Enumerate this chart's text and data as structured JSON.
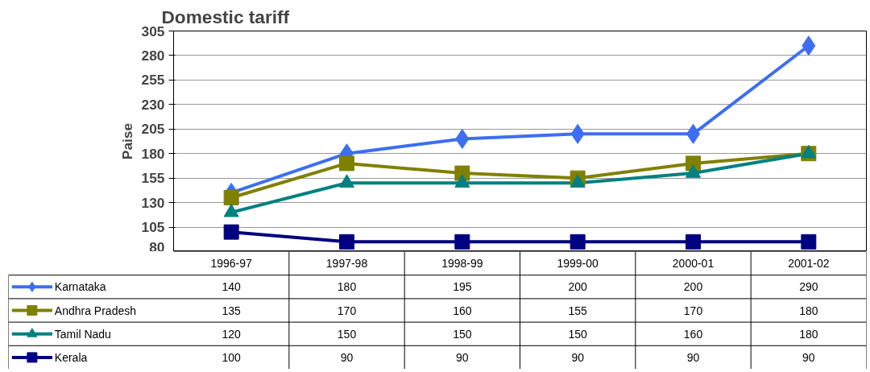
{
  "chart_data": {
    "type": "line",
    "title": "Domestic tariff",
    "ylabel": "Paise",
    "categories": [
      "1996-97",
      "1997-98",
      "1998-99",
      "1999-00",
      "2000-01",
      "2001-02"
    ],
    "series": [
      {
        "name": "Karnataka",
        "color": "#3d6ef2",
        "marker": "diamond",
        "values": [
          140,
          180,
          195,
          200,
          200,
          290
        ]
      },
      {
        "name": "Andhra Pradesh",
        "color": "#808000",
        "marker": "square",
        "values": [
          135,
          170,
          160,
          155,
          170,
          180
        ]
      },
      {
        "name": "Tamil Nadu",
        "color": "#008080",
        "marker": "triangle",
        "values": [
          120,
          150,
          150,
          150,
          160,
          180
        ]
      },
      {
        "name": "Kerala",
        "color": "#000080",
        "marker": "square",
        "values": [
          100,
          90,
          90,
          90,
          90,
          90
        ]
      }
    ],
    "ylim": [
      80,
      305
    ],
    "yticks": [
      80,
      105,
      130,
      155,
      180,
      205,
      230,
      255,
      280,
      305
    ],
    "grid": "y",
    "legend": "bottom left",
    "data_labels": true,
    "line_style": "solid"
  }
}
